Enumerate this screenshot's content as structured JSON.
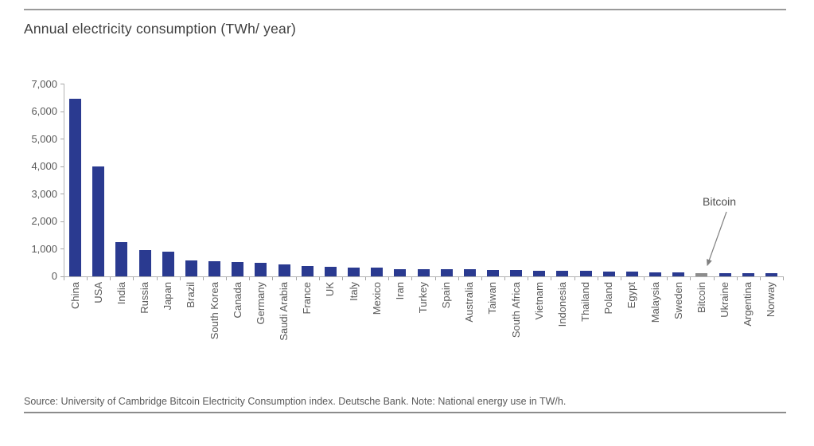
{
  "chart_data": {
    "type": "bar",
    "title": "Annual electricity consumption (TWh/ year)",
    "xlabel": "",
    "ylabel": "",
    "ylim": [
      0,
      7000
    ],
    "y_ticks": [
      0,
      1000,
      2000,
      3000,
      4000,
      5000,
      6000,
      7000
    ],
    "grid": false,
    "legend": "none",
    "bar_color": "#2a3a90",
    "highlight": {
      "category": "Bitcoin",
      "color": "#8c8c8c"
    },
    "annotation": {
      "text": "Bitcoin",
      "target_category": "Bitcoin",
      "arrow_color": "#808080"
    },
    "categories": [
      "China",
      "USA",
      "India",
      "Russia",
      "Japan",
      "Brazil",
      "South Korea",
      "Canada",
      "Germany",
      "Saudi Arabia",
      "France",
      "UK",
      "Italy",
      "Mexico",
      "Iran",
      "Turkey",
      "Spain",
      "Australia",
      "Taiwan",
      "South Africa",
      "Vietnam",
      "Indonesia",
      "Thailand",
      "Poland",
      "Egypt",
      "Malaysia",
      "Sweden",
      "Bitcoin",
      "Ukraine",
      "Argentina",
      "Norway"
    ],
    "values": [
      6450,
      3990,
      1250,
      965,
      900,
      580,
      545,
      535,
      500,
      440,
      380,
      340,
      325,
      305,
      275,
      265,
      255,
      250,
      240,
      225,
      215,
      205,
      195,
      175,
      165,
      155,
      135,
      128,
      125,
      122,
      120
    ],
    "source": "Source: University of Cambridge Bitcoin Electricity Consumption index. Deutsche Bank. Note: National energy use in TW/h."
  }
}
